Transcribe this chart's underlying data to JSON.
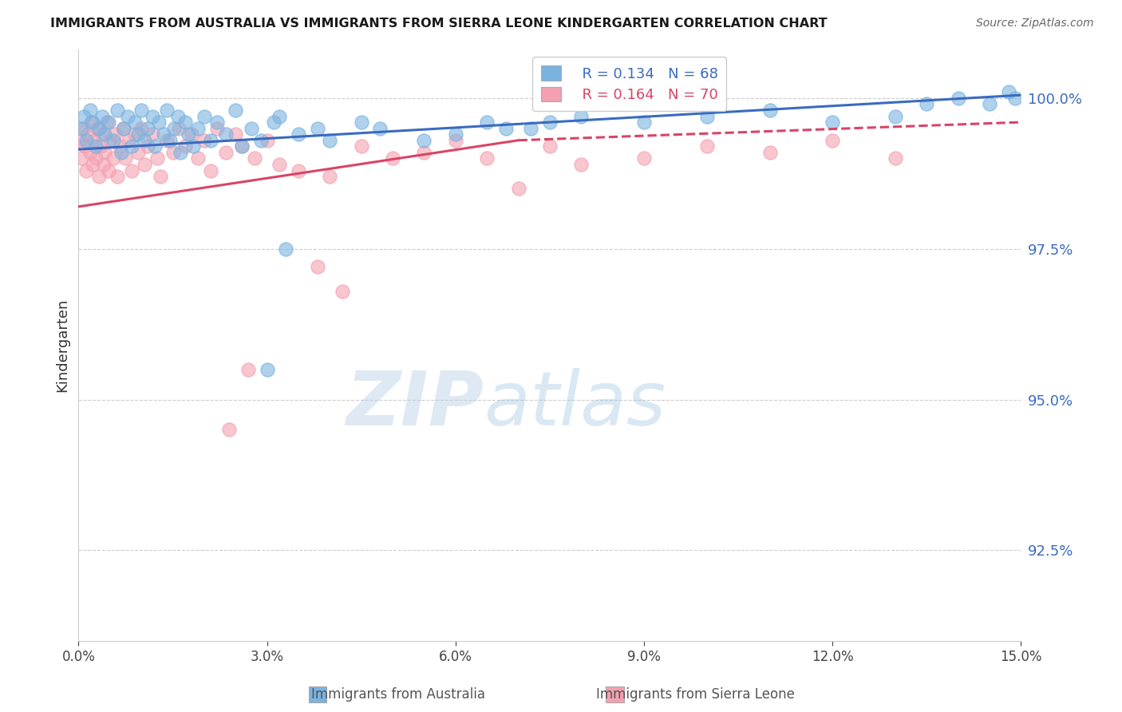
{
  "title": "IMMIGRANTS FROM AUSTRALIA VS IMMIGRANTS FROM SIERRA LEONE KINDERGARTEN CORRELATION CHART",
  "source": "Source: ZipAtlas.com",
  "ylabel": "Kindergarten",
  "xmin": 0.0,
  "xmax": 15.0,
  "ymin": 91.0,
  "ymax": 100.8,
  "yticks": [
    92.5,
    95.0,
    97.5,
    100.0
  ],
  "xticks": [
    0.0,
    3.0,
    6.0,
    9.0,
    12.0,
    15.0
  ],
  "color_australia": "#7ab3e0",
  "color_sierraleone": "#f4a0b0",
  "trendline_color_australia": "#3a6bbf",
  "trendline_color_sierraleone": "#d94466",
  "R_australia": 0.134,
  "N_australia": 68,
  "R_sierraleone": 0.164,
  "N_sierraleone": 70,
  "australia_x": [
    0.05,
    0.08,
    0.12,
    0.18,
    0.22,
    0.28,
    0.32,
    0.38,
    0.42,
    0.48,
    0.55,
    0.62,
    0.68,
    0.72,
    0.78,
    0.85,
    0.9,
    0.95,
    1.0,
    1.05,
    1.1,
    1.18,
    1.22,
    1.28,
    1.35,
    1.4,
    1.45,
    1.52,
    1.58,
    1.62,
    1.7,
    1.75,
    1.82,
    1.9,
    2.0,
    2.1,
    2.2,
    2.35,
    2.5,
    2.6,
    2.75,
    2.9,
    3.1,
    3.2,
    3.5,
    3.8,
    4.0,
    4.5,
    4.8,
    5.5,
    6.0,
    6.5,
    7.2,
    8.0,
    9.0,
    10.0,
    11.0,
    12.0,
    13.0,
    13.5,
    14.0,
    14.5,
    14.8,
    14.9,
    6.8,
    7.5,
    3.3,
    3.0
  ],
  "australia_y": [
    99.5,
    99.7,
    99.3,
    99.8,
    99.6,
    99.2,
    99.5,
    99.7,
    99.4,
    99.6,
    99.3,
    99.8,
    99.1,
    99.5,
    99.7,
    99.2,
    99.6,
    99.4,
    99.8,
    99.3,
    99.5,
    99.7,
    99.2,
    99.6,
    99.4,
    99.8,
    99.3,
    99.5,
    99.7,
    99.1,
    99.6,
    99.4,
    99.2,
    99.5,
    99.7,
    99.3,
    99.6,
    99.4,
    99.8,
    99.2,
    99.5,
    99.3,
    99.6,
    99.7,
    99.4,
    99.5,
    99.3,
    99.6,
    99.5,
    99.3,
    99.4,
    99.6,
    99.5,
    99.7,
    99.6,
    99.7,
    99.8,
    99.6,
    99.7,
    99.9,
    100.0,
    99.9,
    100.1,
    100.0,
    99.5,
    99.6,
    97.5,
    95.5
  ],
  "sierraleone_x": [
    0.02,
    0.05,
    0.08,
    0.1,
    0.12,
    0.15,
    0.18,
    0.2,
    0.22,
    0.25,
    0.28,
    0.3,
    0.32,
    0.35,
    0.38,
    0.4,
    0.42,
    0.45,
    0.48,
    0.5,
    0.55,
    0.58,
    0.62,
    0.65,
    0.7,
    0.75,
    0.8,
    0.85,
    0.9,
    0.95,
    1.0,
    1.05,
    1.1,
    1.18,
    1.25,
    1.3,
    1.4,
    1.5,
    1.6,
    1.7,
    1.8,
    1.9,
    2.0,
    2.1,
    2.2,
    2.35,
    2.5,
    2.6,
    2.8,
    3.0,
    3.2,
    3.5,
    4.0,
    4.5,
    5.0,
    5.5,
    6.0,
    6.5,
    7.0,
    7.5,
    8.0,
    9.0,
    10.0,
    11.0,
    12.0,
    13.0,
    3.8,
    4.2,
    2.7,
    2.4
  ],
  "sierraleone_y": [
    99.3,
    99.0,
    99.5,
    99.2,
    98.8,
    99.4,
    99.1,
    99.6,
    98.9,
    99.3,
    99.0,
    99.5,
    98.7,
    99.2,
    99.4,
    98.9,
    99.1,
    99.6,
    98.8,
    99.3,
    99.0,
    99.4,
    98.7,
    99.2,
    99.5,
    99.0,
    99.3,
    98.8,
    99.4,
    99.1,
    99.5,
    98.9,
    99.2,
    99.4,
    99.0,
    98.7,
    99.3,
    99.1,
    99.5,
    99.2,
    99.4,
    99.0,
    99.3,
    98.8,
    99.5,
    99.1,
    99.4,
    99.2,
    99.0,
    99.3,
    98.9,
    98.8,
    98.7,
    99.2,
    99.0,
    99.1,
    99.3,
    99.0,
    98.5,
    99.2,
    98.9,
    99.0,
    99.2,
    99.1,
    99.3,
    99.0,
    97.2,
    96.8,
    95.5,
    94.5
  ],
  "watermark_zip": "ZIP",
  "watermark_atlas": "atlas",
  "trend_aus_x0": 0.0,
  "trend_aus_y0": 99.15,
  "trend_aus_x1": 15.0,
  "trend_aus_y1": 100.05,
  "trend_sl_x0": 0.0,
  "trend_sl_y0": 98.2,
  "trend_sl_x1": 7.0,
  "trend_sl_y1": 99.3,
  "trend_sl_dash_x0": 7.0,
  "trend_sl_dash_y0": 99.3,
  "trend_sl_dash_x1": 15.0,
  "trend_sl_dash_y1": 99.6
}
